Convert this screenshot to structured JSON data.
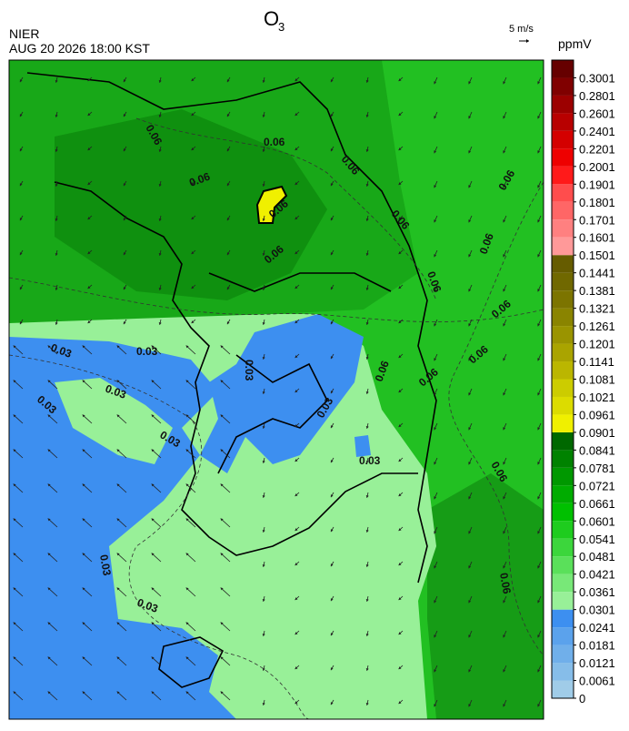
{
  "header": {
    "title": "O",
    "title_sub": "3",
    "agency": "NIER",
    "datetime": "AUG 20 2026 18:00 KST",
    "wind_scale": "5 m/s"
  },
  "colorbar": {
    "unit": "ppmV",
    "ticks": [
      0,
      0.0061,
      0.0121,
      0.0181,
      0.0241,
      0.0301,
      0.0361,
      0.0421,
      0.0481,
      0.0541,
      0.0601,
      0.0661,
      0.0721,
      0.0781,
      0.0841,
      0.0901,
      0.0961,
      0.1021,
      0.1081,
      0.1141,
      0.1201,
      0.1261,
      0.1321,
      0.1381,
      0.1441,
      0.1501,
      0.1601,
      0.1701,
      0.1801,
      0.1901,
      0.2001,
      0.2201,
      0.2401,
      0.2601,
      0.2801,
      0.3001
    ],
    "colors": [
      "#a0cce8",
      "#86bde9",
      "#70afea",
      "#5ba2ec",
      "#3d8ff0",
      "#98f098",
      "#78e878",
      "#5ae05a",
      "#3cd63c",
      "#1ecc1e",
      "#00c000",
      "#00ac00",
      "#009800",
      "#008200",
      "#006800",
      "#f0f000",
      "#dcdc00",
      "#cccc00",
      "#bbb600",
      "#aaa400",
      "#9a9400",
      "#8a8400",
      "#7c7400",
      "#706800",
      "#665c00",
      "#ff9999",
      "#ff8080",
      "#ff6666",
      "#ff4d4d",
      "#ff1a1a",
      "#ee0000",
      "#d40000",
      "#b80000",
      "#9c0000",
      "#800000",
      "#660000"
    ]
  },
  "map": {
    "contour_labels": [
      "0.06",
      "0.06",
      "0.06",
      "0.06",
      "0.06",
      "0.06",
      "0.06",
      "0.06",
      "0.06",
      "0.06",
      "0.06",
      "0.06",
      "0.06",
      "0.06",
      "0.06",
      "0.06",
      "0.03",
      "0.03",
      "0.03",
      "0.03",
      "0.03",
      "0.03",
      "0.03",
      "0.03",
      "0.03",
      "0.03"
    ]
  }
}
